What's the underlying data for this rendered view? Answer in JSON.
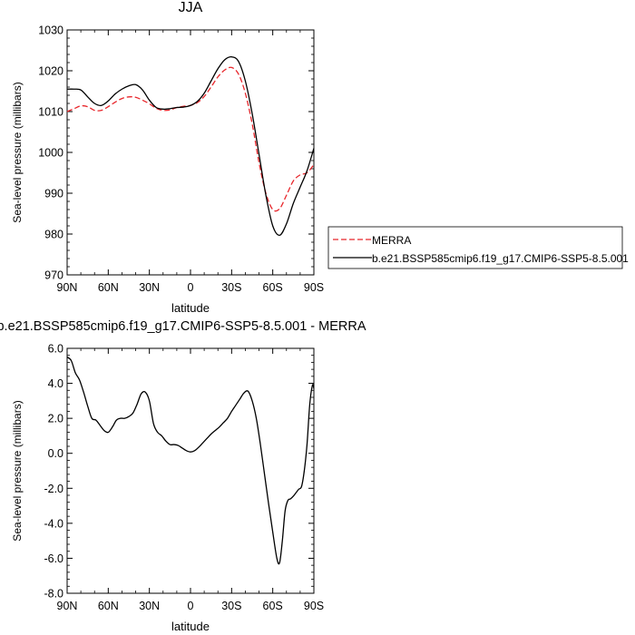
{
  "chart_data": [
    {
      "type": "line",
      "title": "JJA",
      "xlabel": "latitude",
      "ylabel": "Sea-level pressure (millibars)",
      "xlim": [
        90,
        -90
      ],
      "ylim": [
        970,
        1030
      ],
      "xticks": [
        90,
        60,
        30,
        0,
        -30,
        -60,
        -90
      ],
      "xtick_labels": [
        "90N",
        "60N",
        "30N",
        "0",
        "30S",
        "60S",
        "90S"
      ],
      "yticks": [
        970,
        980,
        990,
        1000,
        1010,
        1020,
        1030
      ],
      "ytick_labels": [
        "970",
        "980",
        "990",
        "1000",
        "1010",
        "1020",
        "1030"
      ],
      "legend": "right",
      "series": [
        {
          "name": "MERRA",
          "color": "#e8262b",
          "style": "dashed",
          "x": [
            90,
            85,
            80,
            75,
            70,
            65,
            60,
            55,
            50,
            45,
            40,
            35,
            30,
            25,
            20,
            15,
            10,
            5,
            0,
            -5,
            -10,
            -15,
            -20,
            -25,
            -30,
            -35,
            -40,
            -45,
            -50,
            -55,
            -60,
            -65,
            -70,
            -75,
            -80,
            -85,
            -90
          ],
          "y": [
            1010,
            1010.7,
            1011.4,
            1011.2,
            1010.3,
            1010.3,
            1011.2,
            1012.3,
            1013.2,
            1013.6,
            1013.5,
            1012.8,
            1011.9,
            1010.8,
            1010.3,
            1010.4,
            1011.0,
            1011.3,
            1011.5,
            1012.2,
            1013.7,
            1016.0,
            1018.5,
            1020.2,
            1020.8,
            1019.2,
            1014.5,
            1007.0,
            997.5,
            990.0,
            986.0,
            986.2,
            989.5,
            993.0,
            994.5,
            995.0,
            997.0
          ]
        },
        {
          "name": "b.e21.BSSP585cmip6.f19_g17.CMIP6-SSP5-8.5.001",
          "color": "#000000",
          "style": "solid",
          "x": [
            90,
            85,
            80,
            75,
            70,
            65,
            60,
            55,
            50,
            45,
            40,
            35,
            30,
            25,
            20,
            15,
            10,
            5,
            0,
            -5,
            -10,
            -15,
            -20,
            -25,
            -30,
            -35,
            -40,
            -45,
            -50,
            -55,
            -60,
            -65,
            -70,
            -75,
            -80,
            -85,
            -90
          ],
          "y": [
            1015.5,
            1015.5,
            1015.3,
            1013.6,
            1012.0,
            1011.5,
            1012.6,
            1014.3,
            1015.5,
            1016.3,
            1016.6,
            1015.3,
            1012.8,
            1011.0,
            1010.6,
            1010.7,
            1011.0,
            1011.1,
            1011.5,
            1012.5,
            1014.5,
            1017.5,
            1020.5,
            1022.7,
            1023.4,
            1022.3,
            1017.5,
            1009.5,
            999.5,
            989.5,
            982.0,
            979.7,
            982.5,
            987.5,
            991.5,
            995.5,
            1001.0
          ]
        }
      ]
    },
    {
      "type": "line",
      "title": "b.e21.BSSP585cmip6.f19_g17.CMIP6-SSP5-8.5.001 - MERRA",
      "xlabel": "latitude",
      "ylabel": "Sea-level pressure (millibars)",
      "xlim": [
        90,
        -90
      ],
      "ylim": [
        -8,
        6
      ],
      "xticks": [
        90,
        60,
        30,
        0,
        -30,
        -60,
        -90
      ],
      "xtick_labels": [
        "90N",
        "60N",
        "30N",
        "0",
        "30S",
        "60S",
        "90S"
      ],
      "yticks": [
        -8,
        -6,
        -4,
        -2,
        0,
        2,
        4,
        6
      ],
      "ytick_labels": [
        "-8.0",
        "-6.0",
        "-4.0",
        "-2.0",
        "0.0",
        "2.0",
        "4.0",
        "6.0"
      ],
      "series": [
        {
          "color": "#000000",
          "style": "solid",
          "x": [
            90,
            87,
            84,
            81,
            78,
            75,
            72,
            69,
            66,
            63,
            60,
            57,
            54,
            51,
            48,
            45,
            42,
            39,
            36,
            33,
            30,
            27,
            24,
            21,
            18,
            15,
            12,
            9,
            6,
            3,
            0,
            -3,
            -6,
            -9,
            -12,
            -15,
            -18,
            -21,
            -24,
            -27,
            -30,
            -33,
            -36,
            -39,
            -42,
            -45,
            -48,
            -51,
            -54,
            -57,
            -60,
            -63,
            -65,
            -67,
            -69,
            -71,
            -73,
            -75,
            -77,
            -79,
            -81,
            -83,
            -85,
            -87,
            -89,
            -90
          ],
          "y": [
            5.5,
            5.3,
            4.6,
            4.2,
            3.5,
            2.7,
            2.0,
            1.9,
            1.6,
            1.3,
            1.2,
            1.5,
            1.9,
            2.0,
            2.0,
            2.1,
            2.3,
            2.8,
            3.4,
            3.5,
            3.0,
            1.7,
            1.2,
            1.0,
            0.7,
            0.5,
            0.5,
            0.45,
            0.3,
            0.15,
            0.08,
            0.15,
            0.35,
            0.6,
            0.85,
            1.1,
            1.3,
            1.5,
            1.75,
            2.0,
            2.4,
            2.75,
            3.1,
            3.45,
            3.55,
            3.0,
            2.0,
            0.5,
            -1.2,
            -2.9,
            -4.5,
            -6.0,
            -6.25,
            -5.0,
            -3.3,
            -2.7,
            -2.6,
            -2.45,
            -2.25,
            -2.05,
            -1.9,
            -1.0,
            0.5,
            2.8,
            3.9,
            3.7
          ]
        }
      ]
    }
  ]
}
